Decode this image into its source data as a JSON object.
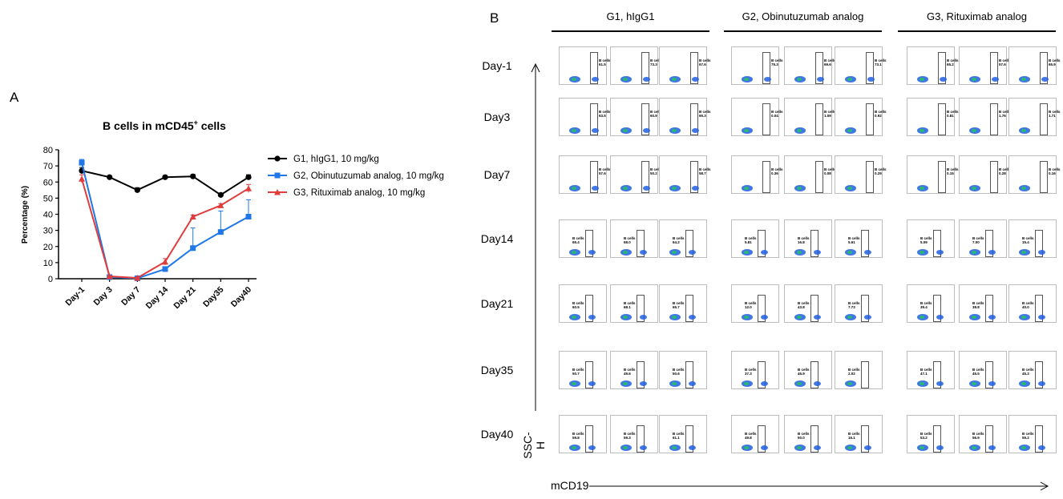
{
  "panel_a": {
    "label": "A",
    "chart_data": {
      "type": "line",
      "title": "B cells in mCD45",
      "title_sup": "+",
      "title_suffix": " cells",
      "xlabel": "",
      "ylabel": "Percentage (%)",
      "categories": [
        "Day-1",
        "Day 3",
        "Day 7",
        "Day 14",
        "Day 21",
        "Day35",
        "Day40"
      ],
      "ylim": [
        0,
        80
      ],
      "yticks": [
        0,
        10,
        20,
        30,
        40,
        50,
        60,
        70,
        80
      ],
      "grid": false,
      "legend_position": "right",
      "series": [
        {
          "name": "G1, hIgG1, 10 mg/kg",
          "color": "#000000",
          "marker": "circle",
          "values": [
            67,
            63,
            55,
            63,
            63.5,
            52,
            63
          ],
          "errors": [
            2,
            0.5,
            1.5,
            1,
            1.2,
            1,
            1.5
          ]
        },
        {
          "name": "G2, Obinutuzumab analog, 10 mg/kg",
          "color": "#1f77e8",
          "marker": "square",
          "values": [
            72,
            1,
            0.3,
            6,
            19,
            29,
            38.5
          ],
          "errors": [
            2,
            0.2,
            0.1,
            0.8,
            12.5,
            13,
            10.5
          ]
        },
        {
          "name": "G3, Rituximab analog, 10 mg/kg",
          "color": "#e03c3c",
          "marker": "triangle",
          "values": [
            62,
            1.5,
            0.5,
            10.5,
            38.5,
            45.5,
            56
          ],
          "errors": [
            2.5,
            0.3,
            0.2,
            2,
            1,
            1,
            2.5
          ]
        }
      ]
    }
  },
  "panel_b": {
    "label": "B",
    "groups": [
      "G1, hIgG1",
      "G2, Obinutuzumab analog",
      "G3, Rituximab analog"
    ],
    "rows": [
      "Day-1",
      "Day3",
      "Day7",
      "Day14",
      "Day21",
      "Day35",
      "Day40"
    ],
    "y_axis_label": "SSC-H",
    "x_axis_label": "mCD19",
    "gate_name": "B cells",
    "gate_values": [
      [
        "61.5",
        "73.3",
        "67.6",
        "75.3",
        "69.6",
        "73.1",
        "65.2",
        "57.6",
        "65.9"
      ],
      [
        "63.5",
        "60.9",
        "65.3",
        "0.04",
        "1.09",
        "0.92",
        "0.81",
        "1.76",
        "1.71"
      ],
      [
        "57.6",
        "50.2",
        "58.7",
        "0.36",
        "0.08",
        "0.29",
        "0.15",
        "0.28",
        "0.16"
      ],
      [
        "65.4",
        "68.0",
        "64.2",
        "5.81",
        "16.8",
        "5.61",
        "5.09",
        "7.00",
        "15.4"
      ],
      [
        "60.5",
        "68.1",
        "65.7",
        "12.0",
        "43.8",
        "7.73",
        "39.4",
        "38.8",
        "40.0"
      ],
      [
        "50.7",
        "49.6",
        "50.6",
        "37.3",
        "46.9",
        "2.02",
        "47.1",
        "45.5",
        "45.3"
      ],
      [
        "59.8",
        "59.3",
        "61.1",
        "49.8",
        "50.0",
        "16.1",
        "53.2",
        "56.9",
        "59.2"
      ]
    ]
  }
}
